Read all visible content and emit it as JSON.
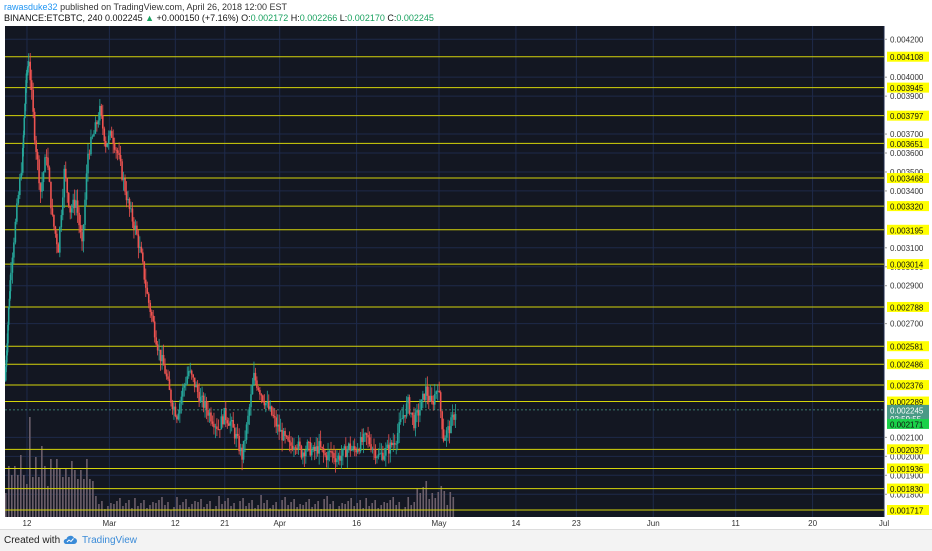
{
  "header": {
    "author": "rawasduke32",
    "published_text": "published on TradingView.com, April 26, 2018 12:00 EST",
    "symbol": "BINANCE:ETCBTC, 240",
    "last": "0.002245",
    "change_arrow": "▲",
    "change": "+0.000150 (+7.16%)",
    "open_label": "O:",
    "open": "0.002172",
    "high_label": "H:",
    "high": "0.002266",
    "low_label": "L:",
    "low": "0.002170",
    "close_label": "C:",
    "close": "0.002245"
  },
  "footer": {
    "created_with": "Created with",
    "brand": "TradingView"
  },
  "chart_data": {
    "type": "candlestick",
    "colors": {
      "background": "#131722",
      "up": "#26a69a",
      "down": "#ef5350",
      "level_line": "#d4d40a",
      "level_tag": "#ffff00",
      "volume": "#6b5e6a",
      "grid": "#1e2a4a"
    },
    "ylim": [
      0.00168,
      0.00427
    ],
    "y_ticks": [
      "0.004200",
      "0.004000",
      "0.003900",
      "0.003700",
      "0.003600",
      "0.003500",
      "0.003400",
      "0.003100",
      "0.003000",
      "0.002900",
      "0.002700",
      "0.002100",
      "0.002000",
      "0.001900",
      "0.001800"
    ],
    "x_ticks": [
      "12",
      "Mar",
      "12",
      "21",
      "Apr",
      "16",
      "May",
      "14",
      "23",
      "Jun",
      "11",
      "20",
      "Jul"
    ],
    "levels": [
      "0.004108",
      "0.003945",
      "0.003797",
      "0.003651",
      "0.003468",
      "0.003320",
      "0.003195",
      "0.003014",
      "0.002788",
      "0.002581",
      "0.002486",
      "0.002376",
      "0.002289",
      "0.002037",
      "0.001936",
      "0.001830",
      "0.001717"
    ],
    "last_price": "0.002245",
    "countdown": "02:59:55",
    "green_tag": "0.002171",
    "price_path": [
      [
        0,
        0.0024
      ],
      [
        0.5,
        0.0027
      ],
      [
        1,
        0.003
      ],
      [
        2,
        0.0033
      ],
      [
        3,
        0.0036
      ],
      [
        3.5,
        0.00395
      ],
      [
        4,
        0.0041
      ],
      [
        5,
        0.0037
      ],
      [
        6,
        0.0034
      ],
      [
        7,
        0.0036
      ],
      [
        8,
        0.00325
      ],
      [
        9,
        0.0031
      ],
      [
        10,
        0.0035
      ],
      [
        11,
        0.0033
      ],
      [
        12,
        0.00335
      ],
      [
        13,
        0.0031
      ],
      [
        14,
        0.0036
      ],
      [
        15,
        0.0037
      ],
      [
        16,
        0.00382
      ],
      [
        17,
        0.00365
      ],
      [
        18,
        0.0037
      ],
      [
        19,
        0.0036
      ],
      [
        20,
        0.00345
      ],
      [
        21,
        0.0033
      ],
      [
        22,
        0.0032
      ],
      [
        23,
        0.00305
      ],
      [
        24,
        0.00285
      ],
      [
        25,
        0.0027
      ],
      [
        26,
        0.00255
      ],
      [
        27,
        0.00245
      ],
      [
        28,
        0.0023
      ],
      [
        29,
        0.00222
      ],
      [
        30,
        0.00235
      ],
      [
        31,
        0.00245
      ],
      [
        32,
        0.00238
      ],
      [
        33,
        0.0023
      ],
      [
        34,
        0.00225
      ],
      [
        35,
        0.0022
      ],
      [
        36,
        0.00215
      ],
      [
        37,
        0.00222
      ],
      [
        38,
        0.00218
      ],
      [
        39,
        0.0021
      ],
      [
        40,
        0.002
      ],
      [
        41,
        0.0022
      ],
      [
        42,
        0.00242
      ],
      [
        43,
        0.00235
      ],
      [
        44,
        0.00228
      ],
      [
        45,
        0.00222
      ],
      [
        46,
        0.00215
      ],
      [
        47,
        0.0021
      ],
      [
        48,
        0.00205
      ],
      [
        49,
        0.00208
      ],
      [
        50,
        0.00202
      ],
      [
        51,
        0.00205
      ],
      [
        52,
        0.00202
      ],
      [
        53,
        0.00205
      ],
      [
        54,
        0.002
      ],
      [
        55,
        0.00202
      ],
      [
        56,
        0.00199
      ],
      [
        57,
        0.00201
      ],
      [
        58,
        0.00205
      ],
      [
        59,
        0.00203
      ],
      [
        60,
        0.00207
      ],
      [
        61,
        0.0021
      ],
      [
        62,
        0.00205
      ],
      [
        63,
        0.002
      ],
      [
        64,
        0.00202
      ],
      [
        65,
        0.00205
      ],
      [
        66,
        0.0021
      ],
      [
        67,
        0.0022
      ],
      [
        68,
        0.00228
      ],
      [
        69,
        0.00218
      ],
      [
        70,
        0.00225
      ],
      [
        71,
        0.00235
      ],
      [
        72,
        0.00227
      ],
      [
        73,
        0.00238
      ],
      [
        74,
        0.0021
      ],
      [
        75,
        0.00215
      ],
      [
        76,
        0.00224
      ]
    ],
    "x_span": [
      0,
      160
    ],
    "x_tick_positions": [
      4,
      19,
      31,
      40,
      50,
      64,
      79,
      93,
      104,
      118,
      133,
      147,
      160
    ]
  }
}
